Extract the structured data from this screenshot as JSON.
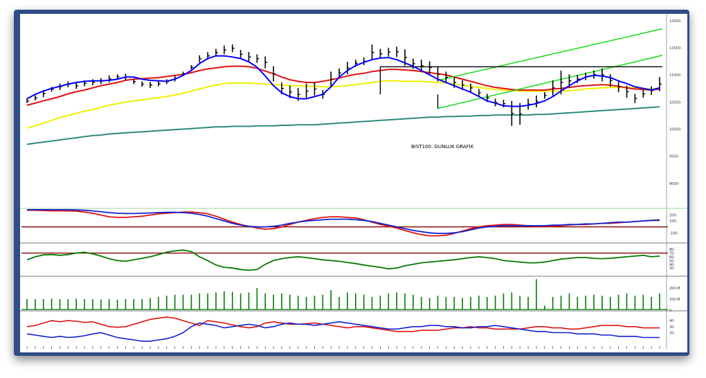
{
  "colors": {
    "frame": "#2f4d86",
    "background": "#ffffff",
    "price_bar": "#000000",
    "ma_blue": "#0000ff",
    "ma_red": "#e01010",
    "ma_yellow": "#f0f000",
    "ma_long": "#2e8a7a",
    "channel": "#22dd22",
    "resistance": "#000000",
    "ind_red": "#e01010",
    "ind_blue": "#1020d0",
    "ind_green": "#007a00",
    "ref_line": "#8b0000",
    "volume": "#007a00"
  },
  "chart_data": [
    {
      "type": "line",
      "panel": "price",
      "title": "BIST100: GUNLUK GRAFIK",
      "ylim": [
        8550,
        12100
      ],
      "yticks": [
        "12000-",
        "11500-",
        "11000-",
        "10500-",
        "10000-",
        "9500-",
        "9000-"
      ],
      "ytick_values": [
        12000,
        11500,
        11000,
        10500,
        10000,
        9500,
        9000
      ],
      "x_points": 78,
      "ohlc_note": "approximate daily bars (high/low) read from the image",
      "bars": {
        "high": [
          10560,
          10620,
          10720,
          10780,
          10840,
          10880,
          10850,
          10900,
          10920,
          10940,
          10990,
          11010,
          11020,
          10920,
          10880,
          10870,
          10880,
          10920,
          10990,
          11060,
          11180,
          11360,
          11420,
          11480,
          11540,
          11560,
          11460,
          11420,
          11380,
          11340,
          11160,
          10860,
          10800,
          10760,
          10840,
          10860,
          10720,
          11060,
          11120,
          11240,
          11280,
          11320,
          11560,
          11480,
          11500,
          11520,
          11470,
          11300,
          11280,
          11250,
          11150,
          11060,
          10960,
          10900,
          10840,
          10740,
          10650,
          10560,
          10540,
          10520,
          10480,
          10560,
          10620,
          10680,
          10900,
          11080,
          11010,
          11000,
          11040,
          11080,
          11120,
          11010,
          10890,
          10800,
          10650,
          10720,
          10790,
          10960
        ],
        "low": [
          10480,
          10530,
          10590,
          10690,
          10720,
          10770,
          10740,
          10790,
          10810,
          10830,
          10860,
          10920,
          10900,
          10830,
          10780,
          10760,
          10790,
          10830,
          10880,
          10980,
          11100,
          11230,
          11280,
          11340,
          11380,
          11420,
          11300,
          11240,
          11220,
          11120,
          10880,
          10640,
          10570,
          10520,
          10560,
          10620,
          10560,
          10780,
          10950,
          11010,
          11150,
          11180,
          11270,
          11300,
          11340,
          11330,
          11170,
          11110,
          11060,
          11020,
          10880,
          10850,
          10760,
          10720,
          10680,
          10600,
          10500,
          10420,
          10400,
          10060,
          10080,
          10360,
          10400,
          10560,
          10620,
          10640,
          10770,
          10850,
          10900,
          10930,
          10880,
          10780,
          10680,
          10580,
          10480,
          10580,
          10630,
          10700
        ]
      },
      "series": [
        {
          "values": [
            10560,
            10640,
            10700,
            10750,
            10790,
            10830,
            10860,
            10880,
            10890,
            10890,
            10900,
            10920,
            10960,
            10960,
            10920,
            10900,
            10890,
            10880,
            10920,
            10990,
            11080,
            11210,
            11300,
            11350,
            11350,
            11330,
            11300,
            11240,
            11140,
            10980,
            10800,
            10670,
            10600,
            10560,
            10560,
            10600,
            10640,
            10780,
            10960,
            11080,
            11170,
            11230,
            11280,
            11310,
            11320,
            11280,
            11220,
            11160,
            11080,
            11000,
            10920,
            10860,
            10800,
            10740,
            10680,
            10600,
            10520,
            10480,
            10430,
            10420,
            10420,
            10440,
            10470,
            10520,
            10600,
            10700,
            10800,
            10890,
            10960,
            10990,
            10980,
            10950,
            10890,
            10840,
            10780,
            10750,
            10720,
            10760
          ]
        },
        {
          "values": [
            10440,
            10480,
            10520,
            10560,
            10600,
            10650,
            10690,
            10720,
            10760,
            10800,
            10830,
            10860,
            10900,
            10920,
            10930,
            10940,
            10950,
            10970,
            10990,
            11010,
            11040,
            11080,
            11110,
            11130,
            11150,
            11160,
            11160,
            11150,
            11120,
            11070,
            11020,
            10960,
            10910,
            10880,
            10860,
            10860,
            10880,
            10910,
            10940,
            10980,
            11010,
            11030,
            11060,
            11080,
            11100,
            11100,
            11090,
            11080,
            11060,
            11040,
            11020,
            11000,
            10960,
            10920,
            10880,
            10840,
            10800,
            10770,
            10750,
            10730,
            10720,
            10720,
            10720,
            10720,
            10740,
            10750,
            10770,
            10790,
            10800,
            10810,
            10820,
            10810,
            10790,
            10760,
            10740,
            10730,
            10720,
            10740
          ]
        },
        {
          "values": [
            10020,
            10060,
            10110,
            10160,
            10210,
            10250,
            10290,
            10330,
            10360,
            10400,
            10440,
            10470,
            10500,
            10520,
            10540,
            10560,
            10580,
            10600,
            10630,
            10660,
            10700,
            10740,
            10780,
            10810,
            10840,
            10850,
            10850,
            10850,
            10840,
            10830,
            10820,
            10810,
            10800,
            10800,
            10790,
            10790,
            10780,
            10780,
            10790,
            10800,
            10820,
            10840,
            10860,
            10880,
            10890,
            10890,
            10880,
            10880,
            10880,
            10870,
            10860,
            10850,
            10830,
            10810,
            10790,
            10770,
            10750,
            10730,
            10720,
            10710,
            10700,
            10700,
            10700,
            10700,
            10700,
            10700,
            10710,
            10720,
            10740,
            10750,
            10760,
            10770,
            10770,
            10770,
            10760,
            10750,
            10740,
            10750
          ]
        },
        {
          "values": [
            9720,
            9740,
            9760,
            9780,
            9800,
            9820,
            9840,
            9860,
            9880,
            9890,
            9910,
            9920,
            9930,
            9940,
            9950,
            9960,
            9970,
            9980,
            9990,
            10000,
            10010,
            10020,
            10030,
            10040,
            10040,
            10050,
            10050,
            10050,
            10060,
            10060,
            10060,
            10070,
            10070,
            10080,
            10080,
            10080,
            10090,
            10100,
            10110,
            10120,
            10130,
            10140,
            10150,
            10160,
            10170,
            10180,
            10190,
            10200,
            10210,
            10220,
            10220,
            10230,
            10230,
            10240,
            10240,
            10250,
            10250,
            10260,
            10260,
            10260,
            10260,
            10260,
            10270,
            10270,
            10280,
            10290,
            10300,
            10310,
            10320,
            10330,
            10340,
            10350,
            10360,
            10370,
            10380,
            10390,
            10400,
            10410
          ]
        }
      ],
      "annotations": [
        "horizontal resistance at ~11150",
        "rising green channel"
      ]
    },
    {
      "type": "line",
      "panel": "macd",
      "ylim": [
        -260,
        300
      ],
      "yticks": [
        "200-",
        "100-",
        "-100-"
      ],
      "ytick_values": [
        200,
        100,
        -100
      ],
      "reference_line": 0,
      "series": [
        {
          "values": [
            280,
            280,
            275,
            270,
            270,
            270,
            265,
            250,
            230,
            200,
            170,
            160,
            160,
            170,
            180,
            200,
            220,
            230,
            240,
            250,
            250,
            240,
            220,
            180,
            130,
            80,
            40,
            10,
            -20,
            -40,
            -30,
            0,
            40,
            80,
            110,
            140,
            160,
            170,
            170,
            160,
            150,
            120,
            80,
            40,
            10,
            -20,
            -60,
            -100,
            -130,
            -150,
            -150,
            -140,
            -110,
            -70,
            -30,
            0,
            20,
            30,
            40,
            40,
            30,
            20,
            10,
            10,
            10,
            20,
            30,
            40,
            40,
            50,
            60,
            60,
            70,
            80,
            90,
            100,
            110,
            120
          ]
        },
        {
          "values": [
            290,
            290,
            290,
            290,
            290,
            290,
            285,
            280,
            270,
            255,
            240,
            230,
            225,
            225,
            230,
            235,
            240,
            245,
            245,
            240,
            230,
            210,
            180,
            140,
            100,
            60,
            30,
            10,
            0,
            0,
            10,
            30,
            60,
            80,
            100,
            110,
            120,
            130,
            130,
            130,
            120,
            110,
            90,
            60,
            30,
            0,
            -30,
            -60,
            -80,
            -100,
            -110,
            -110,
            -100,
            -80,
            -50,
            -20,
            0,
            10,
            20,
            20,
            20,
            20,
            20,
            20,
            30,
            30,
            40,
            40,
            50,
            50,
            60,
            70,
            80,
            80,
            90,
            100,
            110,
            110
          ]
        }
      ]
    },
    {
      "type": "line",
      "panel": "rsi",
      "ylim": [
        10,
        95
      ],
      "yticks": [
        "80-",
        "70-",
        "60-",
        "50-",
        "40-",
        "30-"
      ],
      "ytick_values": [
        80,
        70,
        60,
        50,
        40,
        30
      ],
      "reference_line": 70,
      "series": [
        {
          "values": [
            52,
            60,
            65,
            66,
            64,
            66,
            70,
            72,
            68,
            62,
            55,
            50,
            48,
            52,
            56,
            60,
            66,
            72,
            76,
            78,
            74,
            60,
            50,
            38,
            32,
            30,
            26,
            24,
            26,
            40,
            50,
            55,
            58,
            60,
            58,
            55,
            52,
            50,
            48,
            45,
            42,
            38,
            35,
            32,
            28,
            30,
            36,
            40,
            44,
            46,
            48,
            50,
            52,
            55,
            58,
            60,
            58,
            55,
            50,
            48,
            46,
            44,
            44,
            46,
            50,
            54,
            56,
            58,
            58,
            56,
            55,
            56,
            58,
            60,
            62,
            64,
            60,
            62
          ]
        }
      ]
    },
    {
      "type": "bar",
      "panel": "volume",
      "ylim": [
        0,
        300
      ],
      "yticks": [
        "200.M",
        "100.M",
        "0"
      ],
      "ytick_values": [
        200,
        100,
        0
      ],
      "values": [
        100,
        100,
        100,
        105,
        100,
        100,
        105,
        100,
        100,
        95,
        100,
        95,
        100,
        100,
        100,
        110,
        120,
        130,
        140,
        140,
        140,
        150,
        150,
        160,
        170,
        165,
        150,
        160,
        200,
        150,
        140,
        150,
        140,
        130,
        120,
        130,
        140,
        180,
        120,
        160,
        150,
        140,
        120,
        130,
        150,
        160,
        150,
        140,
        120,
        110,
        130,
        120,
        120,
        110,
        120,
        130,
        120,
        130,
        150,
        160,
        130,
        120,
        280,
        40,
        120,
        130,
        150,
        120,
        130,
        140,
        130,
        120,
        140,
        150,
        130,
        140,
        120,
        150
      ]
    },
    {
      "type": "line",
      "panel": "dmi",
      "ylim": [
        0,
        55
      ],
      "yticks": [
        "40-",
        "30-",
        "20-"
      ],
      "ytick_values": [
        40,
        30,
        20
      ],
      "series": [
        {
          "values": [
            30,
            32,
            36,
            40,
            38,
            40,
            39,
            37,
            38,
            34,
            30,
            29,
            30,
            34,
            38,
            42,
            44,
            46,
            44,
            40,
            36,
            32,
            40,
            38,
            36,
            33,
            30,
            28,
            30,
            36,
            38,
            36,
            34,
            34,
            35,
            36,
            34,
            32,
            30,
            28,
            30,
            30,
            28,
            26,
            24,
            22,
            22,
            22,
            24,
            24,
            24,
            26,
            28,
            28,
            30,
            28,
            28,
            26,
            26,
            26,
            26,
            28,
            30,
            30,
            28,
            28,
            26,
            26,
            28,
            30,
            32,
            32,
            32,
            30,
            30,
            28,
            28,
            28
          ]
        },
        {
          "values": [
            18,
            16,
            14,
            12,
            14,
            12,
            13,
            15,
            18,
            20,
            16,
            12,
            10,
            8,
            6,
            6,
            8,
            10,
            14,
            20,
            30,
            36,
            34,
            32,
            28,
            30,
            32,
            34,
            32,
            28,
            30,
            34,
            36,
            34,
            34,
            32,
            34,
            36,
            38,
            36,
            34,
            32,
            30,
            28,
            26,
            26,
            28,
            30,
            30,
            32,
            32,
            30,
            30,
            28,
            28,
            30,
            30,
            32,
            30,
            28,
            26,
            24,
            22,
            22,
            20,
            20,
            20,
            18,
            18,
            18,
            16,
            16,
            14,
            14,
            14,
            12,
            12,
            12
          ]
        }
      ]
    }
  ]
}
